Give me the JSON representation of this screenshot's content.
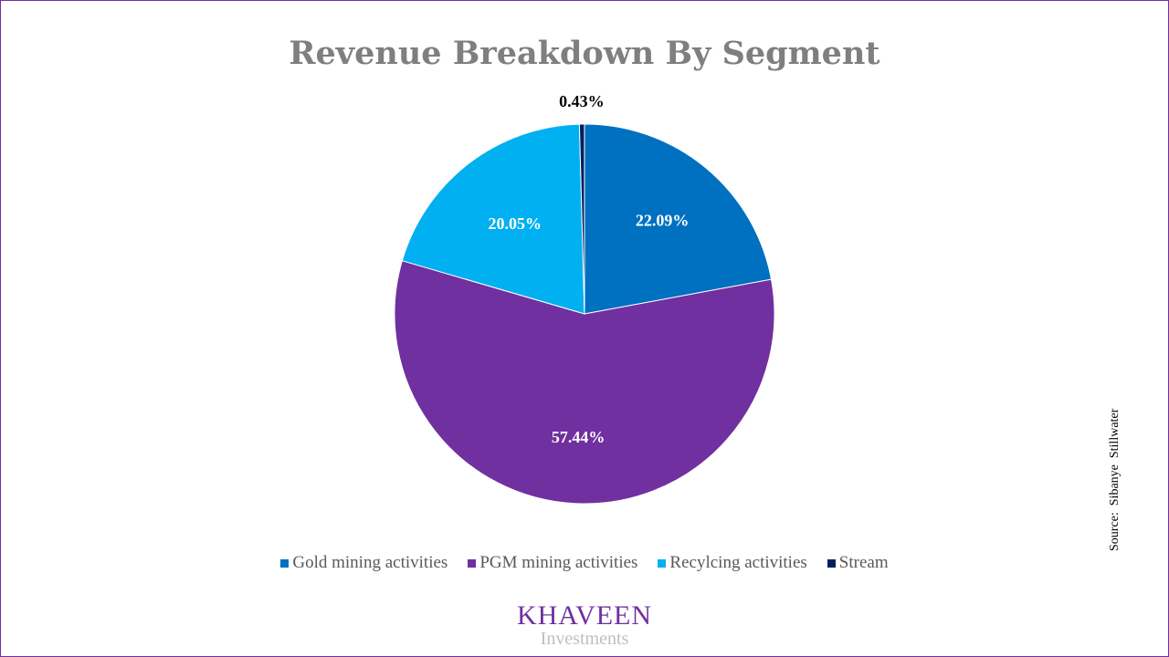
{
  "chart_data": {
    "type": "pie",
    "title": "Revenue Breakdown By Segment",
    "categories": [
      "Gold mining activities",
      "PGM mining activities",
      "Recylcing activities",
      "Stream"
    ],
    "values": [
      22.09,
      57.44,
      20.05,
      0.43
    ],
    "labels": [
      "22.09%",
      "57.44%",
      "20.05%",
      "0.43%"
    ],
    "colors": [
      "#0070c0",
      "#7030a0",
      "#00b0f0",
      "#002060"
    ],
    "start": "12 o'clock",
    "direction": "clockwise",
    "legend_position": "bottom"
  },
  "source": "Source:  Sibanye  Stillwater",
  "logo": {
    "main": "KHAVEEN",
    "sub": "Investments"
  }
}
